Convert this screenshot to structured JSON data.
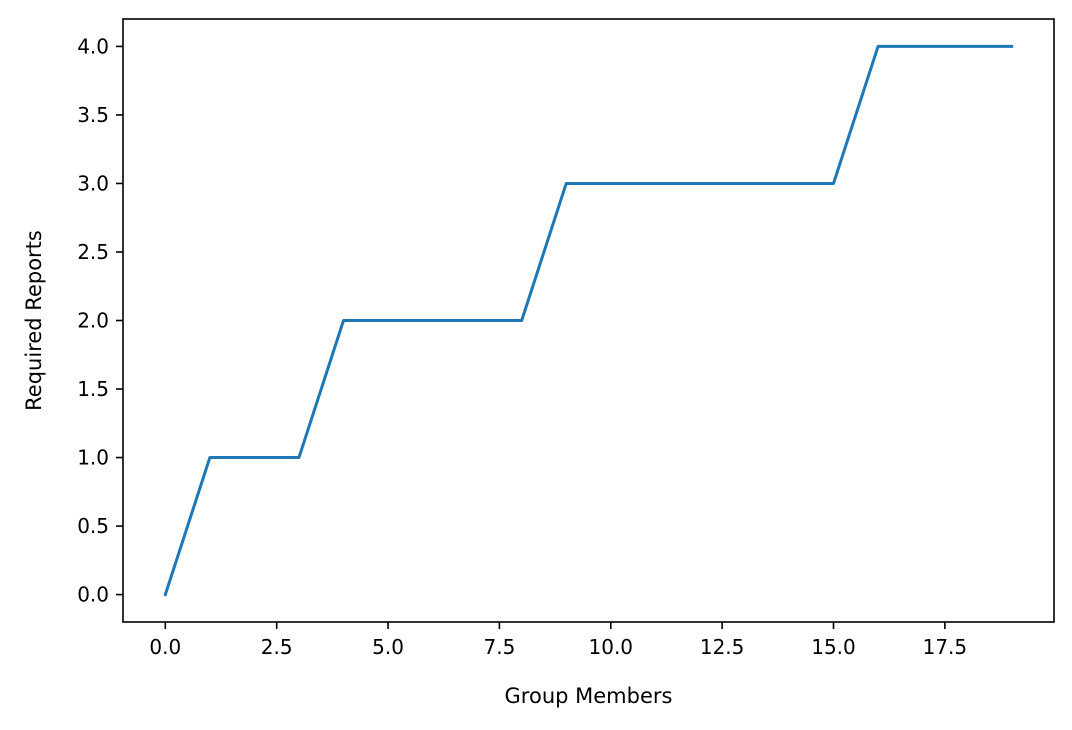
{
  "chart_data": {
    "type": "line",
    "title": "",
    "xlabel": "Group Members",
    "ylabel": "Required Reports",
    "xlim": [
      -0.95,
      19.95
    ],
    "ylim": [
      -0.2,
      4.2
    ],
    "x_ticks": [
      0.0,
      2.5,
      5.0,
      7.5,
      10.0,
      12.5,
      15.0,
      17.5
    ],
    "x_tick_labels": [
      "0.0",
      "2.5",
      "5.0",
      "7.5",
      "10.0",
      "12.5",
      "15.0",
      "17.5"
    ],
    "y_ticks": [
      0.0,
      0.5,
      1.0,
      1.5,
      2.0,
      2.5,
      3.0,
      3.5,
      4.0
    ],
    "y_tick_labels": [
      "0.0",
      "0.5",
      "1.0",
      "1.5",
      "2.0",
      "2.5",
      "3.0",
      "3.5",
      "4.0"
    ],
    "grid": false,
    "legend": "none",
    "series": [
      {
        "color": "#1f77b4",
        "x": [
          0,
          1,
          2,
          3,
          4,
          5,
          6,
          7,
          8,
          9,
          10,
          11,
          12,
          13,
          14,
          15,
          16,
          17,
          18,
          19
        ],
        "y": [
          0,
          1,
          1,
          1,
          2,
          2,
          2,
          2,
          2,
          3,
          3,
          3,
          3,
          3,
          3,
          3,
          4,
          4,
          4,
          4
        ]
      }
    ]
  }
}
